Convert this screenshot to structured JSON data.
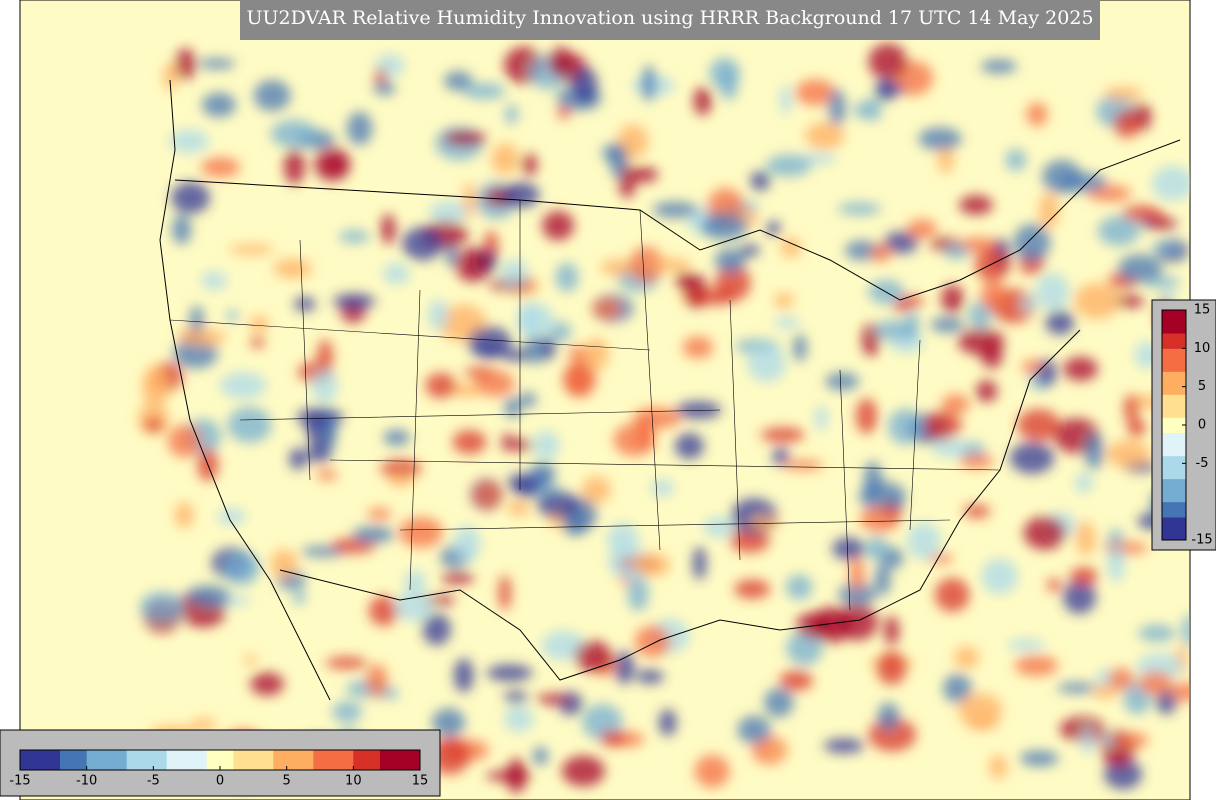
{
  "title": "UU2DVAR Relative Humidity Innovation using HRRR Background 17 UTC 14 May 2025",
  "colormap": [
    "#313695",
    "#4575b4",
    "#74add1",
    "#abd9e9",
    "#e0f3f8",
    "#ffffbf",
    "#fee090",
    "#fdae61",
    "#f46d43",
    "#d73027",
    "#a50026"
  ],
  "colorbar_bottom": {
    "lim": [
      -15,
      15
    ],
    "ticks": [
      -15,
      -10,
      -5,
      0,
      5,
      10,
      15
    ]
  },
  "colorbar_right": {
    "lim": [
      -15,
      15
    ],
    "ticks": [
      -15,
      -5,
      0,
      5,
      10,
      15
    ]
  }
}
